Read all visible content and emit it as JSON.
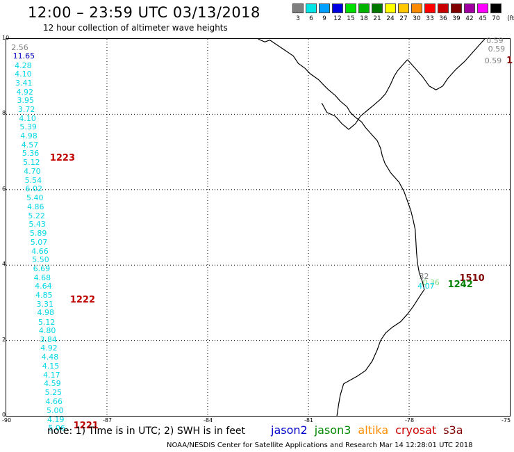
{
  "title": "12:00 – 23:59 UTC 03/13/2018",
  "subtitle": "12 hour collection of altimeter wave heights",
  "color_scale": {
    "units": "(ft)",
    "levels": [
      {
        "label": "3",
        "color": "#7f7f7f"
      },
      {
        "label": "6",
        "color": "#00e5e5"
      },
      {
        "label": "9",
        "color": "#00a0ff"
      },
      {
        "label": "12",
        "color": "#0000e0"
      },
      {
        "label": "15",
        "color": "#00e000"
      },
      {
        "label": "18",
        "color": "#00b400"
      },
      {
        "label": "21",
        "color": "#007800"
      },
      {
        "label": "24",
        "color": "#ffff00"
      },
      {
        "label": "27",
        "color": "#ffc800"
      },
      {
        "label": "30",
        "color": "#ff8c00"
      },
      {
        "label": "33",
        "color": "#ff0000"
      },
      {
        "label": "36",
        "color": "#c80000"
      },
      {
        "label": "39",
        "color": "#800000"
      },
      {
        "label": "42",
        "color": "#a000a0"
      },
      {
        "label": "45",
        "color": "#ff00ff"
      },
      {
        "label": "70",
        "color": "#000000"
      }
    ]
  },
  "map": {
    "lat_ticks": [
      "0",
      "2",
      "4",
      "6",
      "8",
      "10"
    ],
    "lon_ticks": [
      "-90",
      "-87",
      "-84",
      "-81",
      "-78",
      "-75"
    ],
    "lon_range": [
      -90,
      -75
    ],
    "lat_range": [
      0,
      10
    ]
  },
  "tracks": [
    {
      "color": "#00d7e6",
      "observations": [
        {
          "lon": -89.85,
          "lat": 9.78,
          "value": "2.56",
          "color": "#808080"
        },
        {
          "lon": -89.8,
          "lat": 9.55,
          "value": "11.65",
          "color": "#0000c0"
        },
        {
          "lon": -89.75,
          "lat": 9.3,
          "value": "4.28"
        },
        {
          "lon": -89.75,
          "lat": 9.07,
          "value": "4.10"
        },
        {
          "lon": -89.73,
          "lat": 8.84,
          "value": "3.41"
        },
        {
          "lon": -89.7,
          "lat": 8.6,
          "value": "4.92"
        },
        {
          "lon": -89.68,
          "lat": 8.37,
          "value": "3.95"
        },
        {
          "lon": -89.65,
          "lat": 8.14,
          "value": "3.72"
        },
        {
          "lon": -89.62,
          "lat": 7.9,
          "value": "4.10"
        },
        {
          "lon": -89.6,
          "lat": 7.67,
          "value": "5.39"
        },
        {
          "lon": -89.58,
          "lat": 7.43,
          "value": "4.98"
        },
        {
          "lon": -89.55,
          "lat": 7.2,
          "value": "4.57"
        },
        {
          "lon": -89.53,
          "lat": 6.97,
          "value": "5.36"
        },
        {
          "lon": -89.5,
          "lat": 6.73,
          "value": "5.12"
        },
        {
          "lon": -89.48,
          "lat": 6.49,
          "value": "4.70"
        },
        {
          "lon": -89.45,
          "lat": 6.26,
          "value": "5.54"
        },
        {
          "lon": -89.43,
          "lat": 6.03,
          "value": "6.02"
        },
        {
          "lon": -89.4,
          "lat": 5.79,
          "value": "5.40"
        },
        {
          "lon": -89.38,
          "lat": 5.56,
          "value": "4.86"
        },
        {
          "lon": -89.35,
          "lat": 5.32,
          "value": "5.22"
        },
        {
          "lon": -89.33,
          "lat": 5.09,
          "value": "5.43"
        },
        {
          "lon": -89.3,
          "lat": 4.85,
          "value": "5.89"
        },
        {
          "lon": -89.28,
          "lat": 4.62,
          "value": "5.07"
        },
        {
          "lon": -89.25,
          "lat": 4.38,
          "value": "4.66"
        },
        {
          "lon": -89.23,
          "lat": 4.15,
          "value": "5.50"
        },
        {
          "lon": -89.2,
          "lat": 3.91,
          "value": "6.69"
        },
        {
          "lon": -89.18,
          "lat": 3.68,
          "value": "4.68"
        },
        {
          "lon": -89.15,
          "lat": 3.45,
          "value": "4.64"
        },
        {
          "lon": -89.13,
          "lat": 3.21,
          "value": "4.85"
        },
        {
          "lon": -89.1,
          "lat": 2.97,
          "value": "3.31"
        },
        {
          "lon": -89.08,
          "lat": 2.74,
          "value": "4.98"
        },
        {
          "lon": -89.05,
          "lat": 2.5,
          "value": "5.12"
        },
        {
          "lon": -89.03,
          "lat": 2.27,
          "value": "4.80"
        },
        {
          "lon": -89.0,
          "lat": 2.03,
          "value": "3.84"
        },
        {
          "lon": -88.98,
          "lat": 1.8,
          "value": "4.92"
        },
        {
          "lon": -88.95,
          "lat": 1.56,
          "value": "4.48"
        },
        {
          "lon": -88.93,
          "lat": 1.33,
          "value": "4.15"
        },
        {
          "lon": -88.9,
          "lat": 1.09,
          "value": "4.17"
        },
        {
          "lon": -88.88,
          "lat": 0.86,
          "value": "4.59"
        },
        {
          "lon": -88.85,
          "lat": 0.62,
          "value": "5.25"
        },
        {
          "lon": -88.83,
          "lat": 0.38,
          "value": "4.66"
        },
        {
          "lon": -88.8,
          "lat": 0.15,
          "value": "5.00"
        },
        {
          "lon": -88.78,
          "lat": -0.09,
          "value": "4.19"
        },
        {
          "lon": -88.75,
          "lat": -0.32,
          "value": "5.06"
        }
      ]
    },
    {
      "color": "#808080",
      "observations": [
        {
          "lon": -75.7,
          "lat": 9.97,
          "value": "0.59"
        },
        {
          "lon": -75.65,
          "lat": 9.75,
          "value": "0.59"
        },
        {
          "lon": -75.75,
          "lat": 9.43,
          "value": "0.59"
        }
      ]
    },
    {
      "color": "#00d7e6",
      "observations": [
        {
          "lon": -77.7,
          "lat": 3.7,
          "value": "32",
          "color": "#808080"
        },
        {
          "lon": -77.6,
          "lat": 3.55,
          "value": "0.36",
          "color": "#7fd67f"
        },
        {
          "lon": -77.75,
          "lat": 3.45,
          "value": "4.07"
        }
      ]
    }
  ],
  "pass_times": [
    {
      "lon": -88.7,
      "lat": 6.85,
      "label": "1223",
      "color": "#c00000"
    },
    {
      "lon": -88.1,
      "lat": 3.08,
      "label": "1222",
      "color": "#c00000"
    },
    {
      "lon": -88.0,
      "lat": -0.25,
      "label": "1221",
      "color": "#c00000"
    },
    {
      "lon": -76.5,
      "lat": 3.65,
      "label": "1510",
      "color": "#800000"
    },
    {
      "lon": -76.85,
      "lat": 3.48,
      "label": "1242",
      "color": "#008000"
    },
    {
      "lon": -75.1,
      "lat": 9.43,
      "label": "1",
      "color": "#800000"
    }
  ],
  "note": "note:  1) Time is in UTC;  2) SWH is in feet",
  "satellites": [
    {
      "name": "jason2",
      "color": "#0000cc"
    },
    {
      "name": "jason3",
      "color": "#008800"
    },
    {
      "name": "altika",
      "color": "#ff8c00"
    },
    {
      "name": "cryosat",
      "color": "#cc0000"
    },
    {
      "name": "s3a",
      "color": "#800000"
    }
  ],
  "footer": "NOAA/NESDIS Center for Satellite Applications and Research    Mar 14 12:28:01 UTC 2018"
}
